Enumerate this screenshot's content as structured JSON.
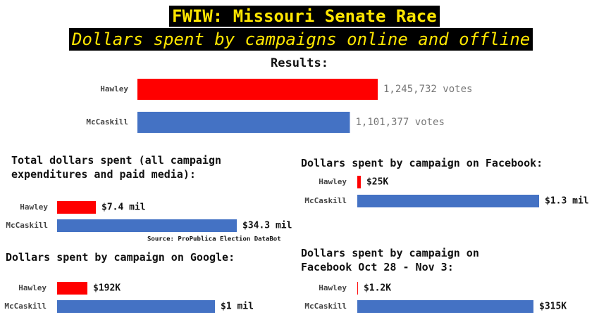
{
  "header": {
    "title": "FWIW: Missouri Senate Race",
    "subtitle": "Dollars spent by campaigns online and offline"
  },
  "chart_data": [
    {
      "type": "bar",
      "orientation": "horizontal",
      "title": "Results:",
      "categories": [
        "Hawley",
        "McCaskill"
      ],
      "values": [
        1245732,
        1101377
      ],
      "value_labels": [
        "1,245,732 votes",
        "1,101,377 votes"
      ],
      "colors": [
        "#ff0000",
        "#4472c4"
      ]
    },
    {
      "type": "bar",
      "orientation": "horizontal",
      "title": "Total dollars spent (all campaign expenditures and paid media):",
      "categories": [
        "Hawley",
        "McCaskill"
      ],
      "values": [
        7400000,
        34300000
      ],
      "value_labels": [
        "$7.4 mil",
        "$34.3 mil"
      ],
      "colors": [
        "#ff0000",
        "#4472c4"
      ],
      "source": "Source: ProPublica Election DataBot"
    },
    {
      "type": "bar",
      "orientation": "horizontal",
      "title": "Dollars spent by campaign on Facebook:",
      "categories": [
        "Hawley",
        "McCaskill"
      ],
      "values": [
        25000,
        1300000
      ],
      "value_labels": [
        "$25K",
        "$1.3 mil"
      ],
      "colors": [
        "#ff0000",
        "#4472c4"
      ]
    },
    {
      "type": "bar",
      "orientation": "horizontal",
      "title": "Dollars spent by campaign on Google:",
      "categories": [
        "Hawley",
        "McCaskill"
      ],
      "values": [
        192000,
        1000000
      ],
      "value_labels": [
        "$192K",
        "$1 mil"
      ],
      "colors": [
        "#ff0000",
        "#4472c4"
      ]
    },
    {
      "type": "bar",
      "orientation": "horizontal",
      "title": "Dollars spent by campaign on Facebook Oct 28 - Nov 3:",
      "categories": [
        "Hawley",
        "McCaskill"
      ],
      "values": [
        1200,
        315000
      ],
      "value_labels": [
        "$1.2K",
        "$315K"
      ],
      "colors": [
        "#ff0000",
        "#4472c4"
      ]
    }
  ]
}
